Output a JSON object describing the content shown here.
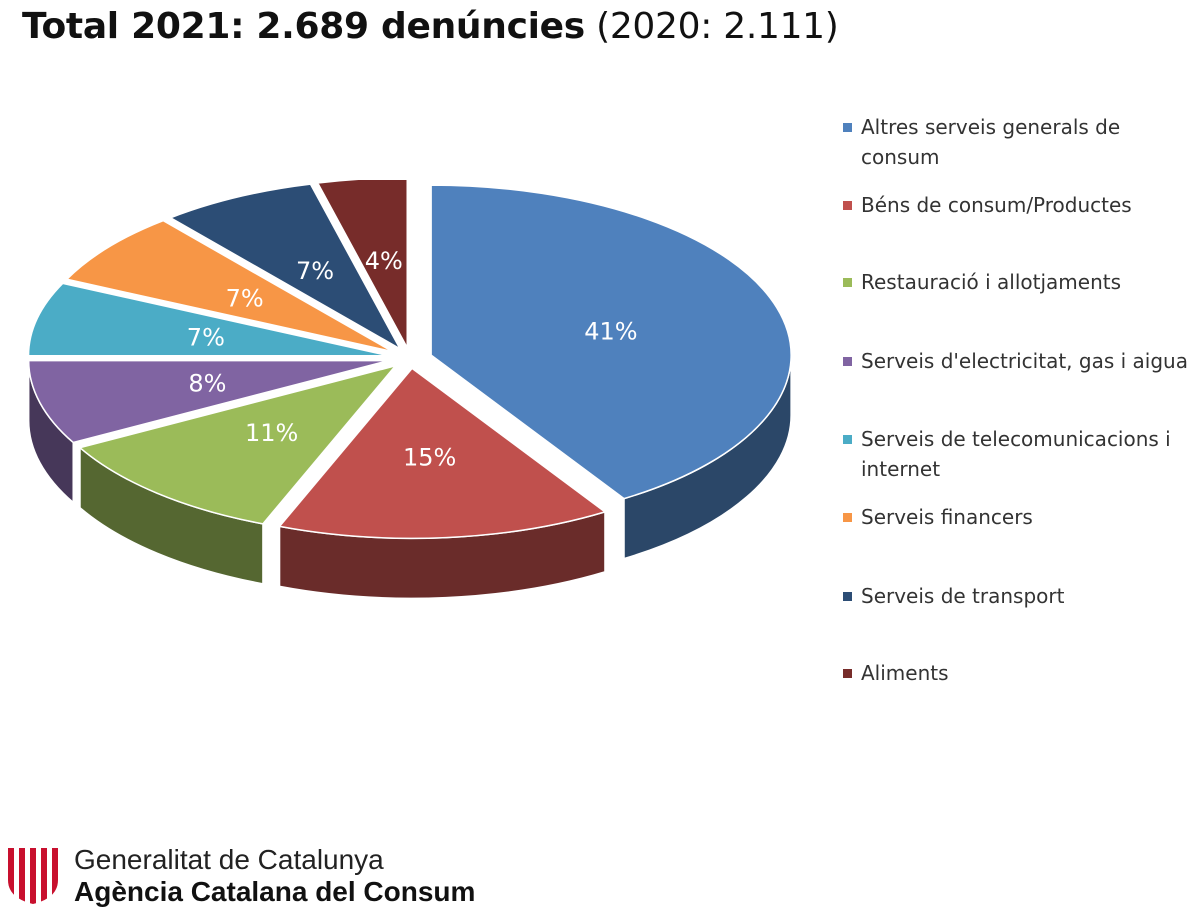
{
  "title": {
    "main": "Total 2021: 2.689 denúncies",
    "secondary": "(2020: 2.111)"
  },
  "chart_data": {
    "type": "pie",
    "style": "3d-exploded",
    "categories": [
      "Altres serveis generals de consum",
      "Béns de consum/Productes",
      "Restauració i allotjaments",
      "Serveis d'electricitat, gas i aigua",
      "Serveis de telecomunicacions i internet",
      "Serveis financers",
      "Serveis de transport",
      "Aliments"
    ],
    "values": [
      41,
      15,
      11,
      8,
      7,
      7,
      7,
      4
    ],
    "labels": [
      "41%",
      "15%",
      "11%",
      "8%",
      "7%",
      "7%",
      "7%",
      "4%"
    ],
    "unit": "%",
    "colors": [
      "#4F81BD",
      "#C0504D",
      "#9BBB59",
      "#8064A2",
      "#4BACC6",
      "#F79646",
      "#2C4D75",
      "#772C2A"
    ],
    "legend_position": "right"
  },
  "legend": {
    "items": [
      {
        "label": "Altres serveis generals de consum",
        "color": "#4F81BD"
      },
      {
        "label": "Béns de consum/Productes",
        "color": "#C0504D"
      },
      {
        "label": "Restauració i allotjaments",
        "color": "#9BBB59"
      },
      {
        "label": "Serveis d'electricitat, gas i aigua",
        "color": "#8064A2"
      },
      {
        "label": "Serveis de telecomunicacions i internet",
        "color": "#4BACC6"
      },
      {
        "label": "Serveis financers",
        "color": "#F79646"
      },
      {
        "label": "Serveis de transport",
        "color": "#2C4D75"
      },
      {
        "label": "Aliments",
        "color": "#772C2A"
      }
    ]
  },
  "footer": {
    "org_line1": "Generalitat de Catalunya",
    "org_line2": "Agència Catalana del Consum",
    "logo_icon": "senyera-shield-icon",
    "logo_colors": [
      "#C8102E",
      "#ffffff"
    ]
  }
}
